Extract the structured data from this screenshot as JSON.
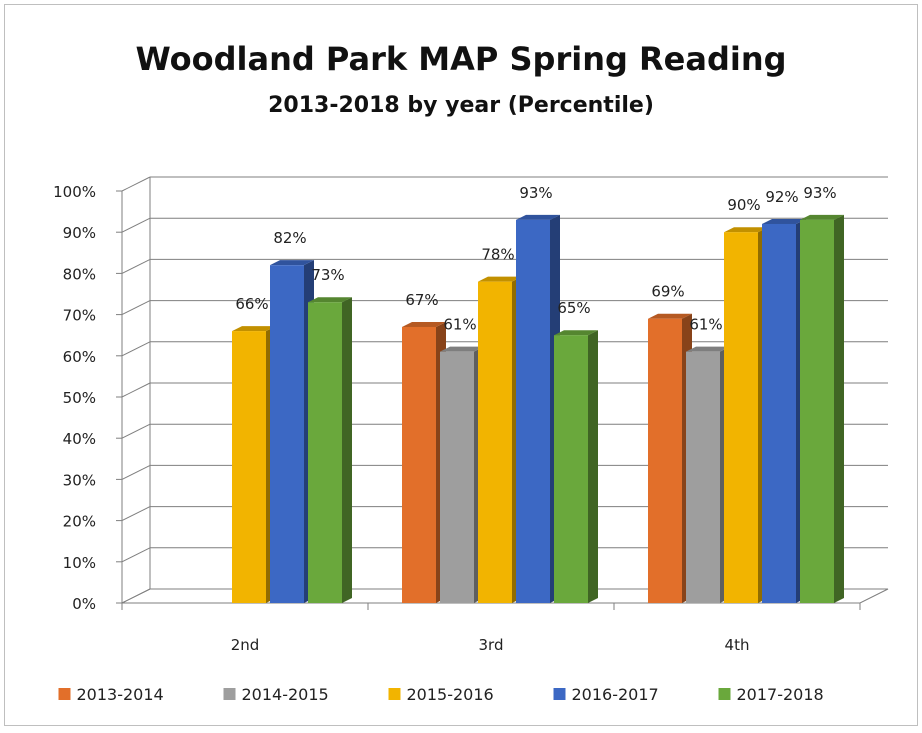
{
  "chart_data": {
    "type": "bar",
    "title": "Woodland Park MAP Spring Reading",
    "subtitle": "2013-2018 by year (Percentile)",
    "xlabel": "",
    "ylabel": "",
    "categories": [
      "2nd",
      "3rd",
      "4th"
    ],
    "ylim": [
      0,
      100
    ],
    "yticks": [
      "0%",
      "10%",
      "20%",
      "30%",
      "40%",
      "50%",
      "60%",
      "70%",
      "80%",
      "90%",
      "100%"
    ],
    "grid": true,
    "legend": "bottom",
    "series": [
      {
        "name": "2013-2014",
        "color": "#e26f2a",
        "values": [
          null,
          67,
          69
        ]
      },
      {
        "name": "2014-2015",
        "color": "#9e9e9e",
        "values": [
          null,
          61,
          61
        ]
      },
      {
        "name": "2015-2016",
        "color": "#f2b400",
        "values": [
          66,
          78,
          90
        ]
      },
      {
        "name": "2016-2017",
        "color": "#3c68c4",
        "values": [
          82,
          93,
          92
        ]
      },
      {
        "name": "2017-2018",
        "color": "#6aa83c",
        "values": [
          73,
          65,
          93
        ]
      }
    ],
    "data_labels": [
      [
        "",
        "67%",
        "69%"
      ],
      [
        "",
        "61%",
        "61%"
      ],
      [
        "66%",
        "78%",
        "90%"
      ],
      [
        "82%",
        "93%",
        "92%"
      ],
      [
        "73%",
        "65%",
        "93%"
      ]
    ]
  }
}
